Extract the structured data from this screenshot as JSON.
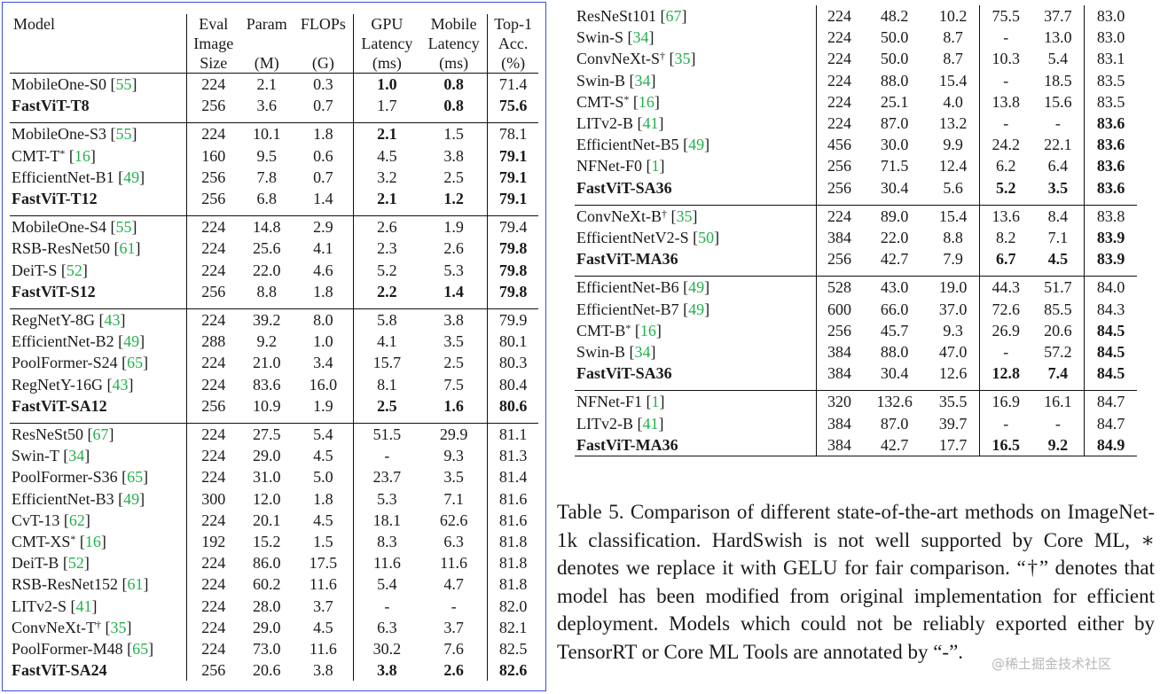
{
  "headers": {
    "model": "Model",
    "eval": [
      "Eval",
      "Image",
      "Size"
    ],
    "param": [
      "Param",
      "(M)"
    ],
    "flops": [
      "FLOPs",
      "(G)"
    ],
    "gpu": [
      "GPU",
      "Latency",
      "(ms)"
    ],
    "mobile": [
      "Mobile",
      "Latency",
      "(ms)"
    ],
    "top1": [
      "Top-1",
      "Acc.",
      "(%)"
    ]
  },
  "left_groups": [
    [
      {
        "name": "MobileOne-S0",
        "ref": "55",
        "size": "224",
        "param": "2.1",
        "flops": "0.3",
        "gpu": "1.0",
        "mobile": "0.8",
        "top1": "71.4",
        "bold": [
          "gpu",
          "mobile"
        ]
      },
      {
        "name": "FastViT-T8",
        "size": "256",
        "param": "3.6",
        "flops": "0.7",
        "gpu": "1.7",
        "mobile": "0.8",
        "top1": "75.6",
        "bold": [
          "name",
          "mobile",
          "top1"
        ]
      }
    ],
    [
      {
        "name": "MobileOne-S3",
        "ref": "55",
        "size": "224",
        "param": "10.1",
        "flops": "1.8",
        "gpu": "2.1",
        "mobile": "1.5",
        "top1": "78.1",
        "bold": [
          "gpu"
        ]
      },
      {
        "name": "CMT-T",
        "sup": "*",
        "ref": "16",
        "size": "160",
        "param": "9.5",
        "flops": "0.6",
        "gpu": "4.5",
        "mobile": "3.8",
        "top1": "79.1",
        "bold": [
          "top1"
        ]
      },
      {
        "name": "EfficientNet-B1",
        "ref": "49",
        "size": "256",
        "param": "7.8",
        "flops": "0.7",
        "gpu": "3.2",
        "mobile": "2.5",
        "top1": "79.1",
        "bold": [
          "top1"
        ]
      },
      {
        "name": "FastViT-T12",
        "size": "256",
        "param": "6.8",
        "flops": "1.4",
        "gpu": "2.1",
        "mobile": "1.2",
        "top1": "79.1",
        "bold": [
          "name",
          "gpu",
          "mobile",
          "top1"
        ]
      }
    ],
    [
      {
        "name": "MobileOne-S4",
        "ref": "55",
        "size": "224",
        "param": "14.8",
        "flops": "2.9",
        "gpu": "2.6",
        "mobile": "1.9",
        "top1": "79.4",
        "bold": []
      },
      {
        "name": "RSB-ResNet50",
        "ref": "61",
        "size": "224",
        "param": "25.6",
        "flops": "4.1",
        "gpu": "2.3",
        "mobile": "2.6",
        "top1": "79.8",
        "bold": [
          "top1"
        ]
      },
      {
        "name": "DeiT-S",
        "ref": "52",
        "size": "224",
        "param": "22.0",
        "flops": "4.6",
        "gpu": "5.2",
        "mobile": "5.3",
        "top1": "79.8",
        "bold": [
          "top1"
        ]
      },
      {
        "name": "FastViT-S12",
        "size": "256",
        "param": "8.8",
        "flops": "1.8",
        "gpu": "2.2",
        "mobile": "1.4",
        "top1": "79.8",
        "bold": [
          "name",
          "gpu",
          "mobile",
          "top1"
        ]
      }
    ],
    [
      {
        "name": "RegNetY-8G",
        "ref": "43",
        "size": "224",
        "param": "39.2",
        "flops": "8.0",
        "gpu": "5.8",
        "mobile": "3.8",
        "top1": "79.9",
        "bold": []
      },
      {
        "name": "EfficientNet-B2",
        "ref": "49",
        "size": "288",
        "param": "9.2",
        "flops": "1.0",
        "gpu": "4.1",
        "mobile": "3.5",
        "top1": "80.1",
        "bold": []
      },
      {
        "name": "PoolFormer-S24",
        "ref": "65",
        "size": "224",
        "param": "21.0",
        "flops": "3.4",
        "gpu": "15.7",
        "mobile": "2.5",
        "top1": "80.3",
        "bold": []
      },
      {
        "name": "RegNetY-16G",
        "ref": "43",
        "size": "224",
        "param": "83.6",
        "flops": "16.0",
        "gpu": "8.1",
        "mobile": "7.5",
        "top1": "80.4",
        "bold": []
      },
      {
        "name": "FastViT-SA12",
        "size": "256",
        "param": "10.9",
        "flops": "1.9",
        "gpu": "2.5",
        "mobile": "1.6",
        "top1": "80.6",
        "bold": [
          "name",
          "gpu",
          "mobile",
          "top1"
        ]
      }
    ],
    [
      {
        "name": "ResNeSt50",
        "ref": "67",
        "size": "224",
        "param": "27.5",
        "flops": "5.4",
        "gpu": "51.5",
        "mobile": "29.9",
        "top1": "81.1",
        "bold": []
      },
      {
        "name": "Swin-T",
        "ref": "34",
        "size": "224",
        "param": "29.0",
        "flops": "4.5",
        "gpu": "-",
        "mobile": "9.3",
        "top1": "81.3",
        "bold": []
      },
      {
        "name": "PoolFormer-S36",
        "ref": "65",
        "size": "224",
        "param": "31.0",
        "flops": "5.0",
        "gpu": "23.7",
        "mobile": "3.5",
        "top1": "81.4",
        "bold": []
      },
      {
        "name": "EfficientNet-B3",
        "ref": "49",
        "size": "300",
        "param": "12.0",
        "flops": "1.8",
        "gpu": "5.3",
        "mobile": "7.1",
        "top1": "81.6",
        "bold": []
      },
      {
        "name": "CvT-13",
        "ref": "62",
        "size": "224",
        "param": "20.1",
        "flops": "4.5",
        "gpu": "18.1",
        "mobile": "62.6",
        "top1": "81.6",
        "bold": []
      },
      {
        "name": "CMT-XS",
        "sup": "*",
        "ref": "16",
        "size": "192",
        "param": "15.2",
        "flops": "1.5",
        "gpu": "8.3",
        "mobile": "6.3",
        "top1": "81.8",
        "bold": []
      },
      {
        "name": "DeiT-B",
        "ref": "52",
        "size": "224",
        "param": "86.0",
        "flops": "17.5",
        "gpu": "11.6",
        "mobile": "11.6",
        "top1": "81.8",
        "bold": []
      },
      {
        "name": "RSB-ResNet152",
        "ref": "61",
        "size": "224",
        "param": "60.2",
        "flops": "11.6",
        "gpu": "5.4",
        "mobile": "4.7",
        "top1": "81.8",
        "bold": []
      },
      {
        "name": "LITv2-S",
        "ref": "41",
        "size": "224",
        "param": "28.0",
        "flops": "3.7",
        "gpu": "-",
        "mobile": "-",
        "top1": "82.0",
        "bold": []
      },
      {
        "name": "ConvNeXt-T",
        "sup": "†",
        "ref": "35",
        "size": "224",
        "param": "29.0",
        "flops": "4.5",
        "gpu": "6.3",
        "mobile": "3.7",
        "top1": "82.1",
        "bold": []
      },
      {
        "name": "PoolFormer-M48",
        "ref": "65",
        "size": "224",
        "param": "73.0",
        "flops": "11.6",
        "gpu": "30.2",
        "mobile": "7.6",
        "top1": "82.5",
        "bold": []
      },
      {
        "name": "FastViT-SA24",
        "size": "256",
        "param": "20.6",
        "flops": "3.8",
        "gpu": "3.8",
        "mobile": "2.6",
        "top1": "82.6",
        "bold": [
          "name",
          "gpu",
          "mobile",
          "top1"
        ]
      }
    ]
  ],
  "right_groups": [
    [
      {
        "name": "ResNeSt101",
        "ref": "67",
        "size": "224",
        "param": "48.2",
        "flops": "10.2",
        "gpu": "75.5",
        "mobile": "37.7",
        "top1": "83.0",
        "bold": []
      },
      {
        "name": "Swin-S",
        "ref": "34",
        "size": "224",
        "param": "50.0",
        "flops": "8.7",
        "gpu": "-",
        "mobile": "13.0",
        "top1": "83.0",
        "bold": []
      },
      {
        "name": "ConvNeXt-S",
        "sup": "†",
        "ref": "35",
        "size": "224",
        "param": "50.0",
        "flops": "8.7",
        "gpu": "10.3",
        "mobile": "5.4",
        "top1": "83.1",
        "bold": []
      },
      {
        "name": "Swin-B",
        "ref": "34",
        "size": "224",
        "param": "88.0",
        "flops": "15.4",
        "gpu": "-",
        "mobile": "18.5",
        "top1": "83.5",
        "bold": []
      },
      {
        "name": "CMT-S",
        "sup": "*",
        "ref": "16",
        "size": "224",
        "param": "25.1",
        "flops": "4.0",
        "gpu": "13.8",
        "mobile": "15.6",
        "top1": "83.5",
        "bold": []
      },
      {
        "name": "LITv2-B",
        "ref": "41",
        "size": "224",
        "param": "87.0",
        "flops": "13.2",
        "gpu": "-",
        "mobile": "-",
        "top1": "83.6",
        "bold": [
          "top1"
        ]
      },
      {
        "name": "EfficientNet-B5",
        "ref": "49",
        "size": "456",
        "param": "30.0",
        "flops": "9.9",
        "gpu": "24.2",
        "mobile": "22.1",
        "top1": "83.6",
        "bold": [
          "top1"
        ]
      },
      {
        "name": "NFNet-F0",
        "ref": "1",
        "size": "256",
        "param": "71.5",
        "flops": "12.4",
        "gpu": "6.2",
        "mobile": "6.4",
        "top1": "83.6",
        "bold": [
          "top1"
        ]
      },
      {
        "name": "FastViT-SA36",
        "size": "256",
        "param": "30.4",
        "flops": "5.6",
        "gpu": "5.2",
        "mobile": "3.5",
        "top1": "83.6",
        "bold": [
          "name",
          "gpu",
          "mobile",
          "top1"
        ]
      }
    ],
    [
      {
        "name": "ConvNeXt-B",
        "sup": "†",
        "ref": "35",
        "size": "224",
        "param": "89.0",
        "flops": "15.4",
        "gpu": "13.6",
        "mobile": "8.4",
        "top1": "83.8",
        "bold": []
      },
      {
        "name": "EfficientNetV2-S",
        "ref": "50",
        "size": "384",
        "param": "22.0",
        "flops": "8.8",
        "gpu": "8.2",
        "mobile": "7.1",
        "top1": "83.9",
        "bold": [
          "top1"
        ]
      },
      {
        "name": "FastViT-MA36",
        "size": "256",
        "param": "42.7",
        "flops": "7.9",
        "gpu": "6.7",
        "mobile": "4.5",
        "top1": "83.9",
        "bold": [
          "name",
          "gpu",
          "mobile",
          "top1"
        ]
      }
    ],
    [
      {
        "name": "EfficientNet-B6",
        "ref": "49",
        "size": "528",
        "param": "43.0",
        "flops": "19.0",
        "gpu": "44.3",
        "mobile": "51.7",
        "top1": "84.0",
        "bold": []
      },
      {
        "name": "EfficientNet-B7",
        "ref": "49",
        "size": "600",
        "param": "66.0",
        "flops": "37.0",
        "gpu": "72.6",
        "mobile": "85.5",
        "top1": "84.3",
        "bold": []
      },
      {
        "name": "CMT-B",
        "sup": "*",
        "ref": "16",
        "size": "256",
        "param": "45.7",
        "flops": "9.3",
        "gpu": "26.9",
        "mobile": "20.6",
        "top1": "84.5",
        "bold": [
          "top1"
        ]
      },
      {
        "name": "Swin-B",
        "ref": "34",
        "size": "384",
        "param": "88.0",
        "flops": "47.0",
        "gpu": "-",
        "mobile": "57.2",
        "top1": "84.5",
        "bold": [
          "top1"
        ]
      },
      {
        "name": "FastViT-SA36",
        "size": "384",
        "param": "30.4",
        "flops": "12.6",
        "gpu": "12.8",
        "mobile": "7.4",
        "top1": "84.5",
        "bold": [
          "name",
          "gpu",
          "mobile",
          "top1"
        ]
      }
    ],
    [
      {
        "name": "NFNet-F1",
        "ref": "1",
        "size": "320",
        "param": "132.6",
        "flops": "35.5",
        "gpu": "16.9",
        "mobile": "16.1",
        "top1": "84.7",
        "bold": []
      },
      {
        "name": "LITv2-B",
        "ref": "41",
        "size": "384",
        "param": "87.0",
        "flops": "39.7",
        "gpu": "-",
        "mobile": "-",
        "top1": "84.7",
        "bold": []
      },
      {
        "name": "FastViT-MA36",
        "size": "384",
        "param": "42.7",
        "flops": "17.7",
        "gpu": "16.5",
        "mobile": "9.2",
        "top1": "84.9",
        "bold": [
          "name",
          "gpu",
          "mobile",
          "top1"
        ]
      }
    ]
  ],
  "caption": "Table 5.  Comparison of different state-of-the-art methods on ImageNet-1k classification. HardSwish is not well supported by Core ML, ∗ denotes we replace it with GELU for fair comparison. “†” denotes that model has been modified from original implementation for efficient deployment. Models which could not be reliably exported either by TensorRT or Core ML Tools are annotated by “-”.",
  "watermark": "@稀土掘金技术社区"
}
